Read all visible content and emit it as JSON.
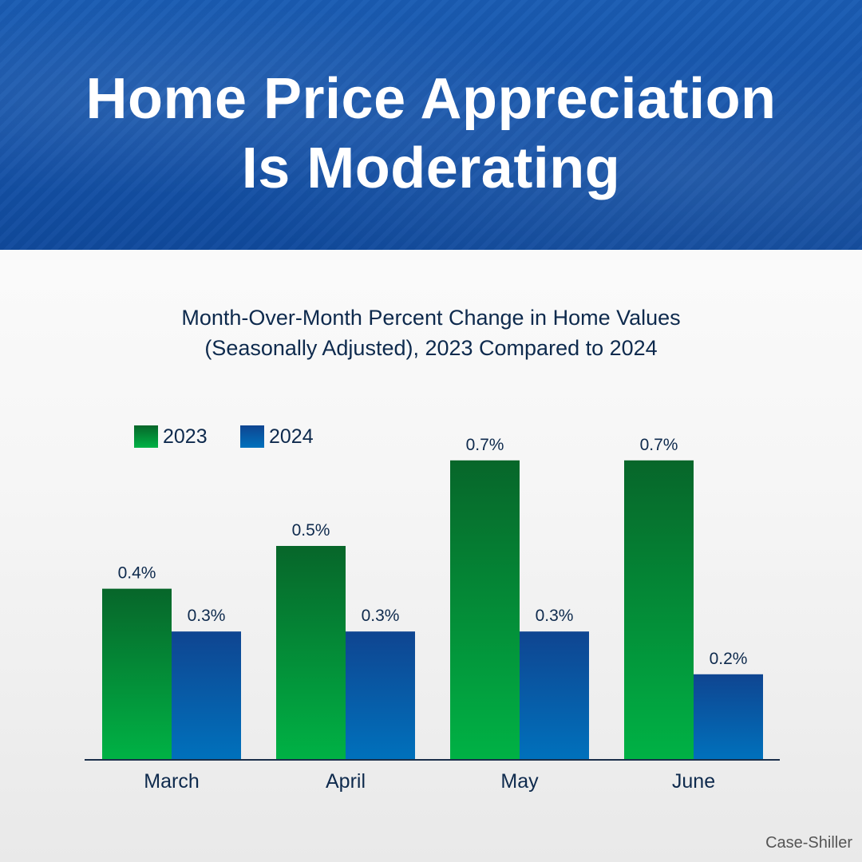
{
  "header": {
    "title_line1": "Home Price Appreciation",
    "title_line2": "Is Moderating"
  },
  "source": "Case-Shiller",
  "colors": {
    "banner": "#1552a8",
    "series_2023_top": "#07662a",
    "series_2023_bottom": "#00b245",
    "series_2024_top": "#0f4591",
    "series_2024_bottom": "#0071bc",
    "text_dark": "#0e2a4d"
  },
  "chart_data": {
    "type": "bar",
    "title_line1": "Month-Over-Month Percent Change in Home Values",
    "title_line2": "(Seasonally Adjusted), 2023 Compared to 2024",
    "categories": [
      "March",
      "April",
      "May",
      "June"
    ],
    "series": [
      {
        "name": "2023",
        "values": [
          0.4,
          0.5,
          0.7,
          0.7
        ],
        "labels": [
          "0.4%",
          "0.5%",
          "0.7%",
          "0.7%"
        ]
      },
      {
        "name": "2024",
        "values": [
          0.3,
          0.3,
          0.3,
          0.2
        ],
        "labels": [
          "0.3%",
          "0.3%",
          "0.3%",
          "0.2%"
        ]
      }
    ],
    "ylim": [
      0,
      0.7
    ],
    "legend_position": "top-left",
    "grid": false,
    "xlabel": "",
    "ylabel": ""
  }
}
